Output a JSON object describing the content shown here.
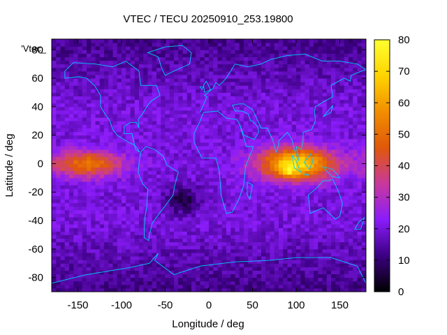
{
  "chart_data": {
    "type": "heatmap",
    "title": "VTEC / TECU 20250910_253.19800",
    "xlabel": "Longitude / deg",
    "ylabel": "Latitude / deg",
    "legend_key": "'Vtec_",
    "xlim": [
      -180,
      180
    ],
    "ylim": [
      -90,
      87.5
    ],
    "x_ticks": [
      -150,
      -100,
      -50,
      0,
      50,
      100,
      150
    ],
    "y_ticks": [
      -80,
      -60,
      -40,
      -20,
      0,
      20,
      40,
      60,
      80
    ],
    "colorbar": {
      "range": [
        0,
        80
      ],
      "ticks": [
        0,
        10,
        20,
        30,
        40,
        50,
        60,
        70,
        80
      ],
      "palette": [
        "#000000",
        "#3c0082",
        "#8a1cfa",
        "#c8399c",
        "#e0580a",
        "#f28e00",
        "#ffd400",
        "#ffff30"
      ]
    },
    "grid": {
      "lon_step": 5,
      "lat_step": 2.5,
      "features": [
        {
          "desc": "american_equatorial_anomaly",
          "lon": -140,
          "lat": 0,
          "lon_width": 40,
          "lat_width": 9,
          "peak": 52
        },
        {
          "desc": "asian_equatorial_anomaly",
          "lon": 100,
          "lat": 0,
          "lon_width": 42,
          "lat_width": 11,
          "peak": 72
        },
        {
          "desc": "asian_hotspot",
          "lon": 92,
          "lat": -4,
          "lon_width": 8,
          "lat_width": 4,
          "peak": 80
        },
        {
          "desc": "south_american_trough",
          "lon": -30,
          "lat": -25,
          "lon_width": 20,
          "lat_width": 10,
          "peak": 6
        }
      ],
      "background_low_lat": 20,
      "background_high_lat": 12
    },
    "overlay": "coastlines",
    "overlay_color": "#00c8ff"
  }
}
